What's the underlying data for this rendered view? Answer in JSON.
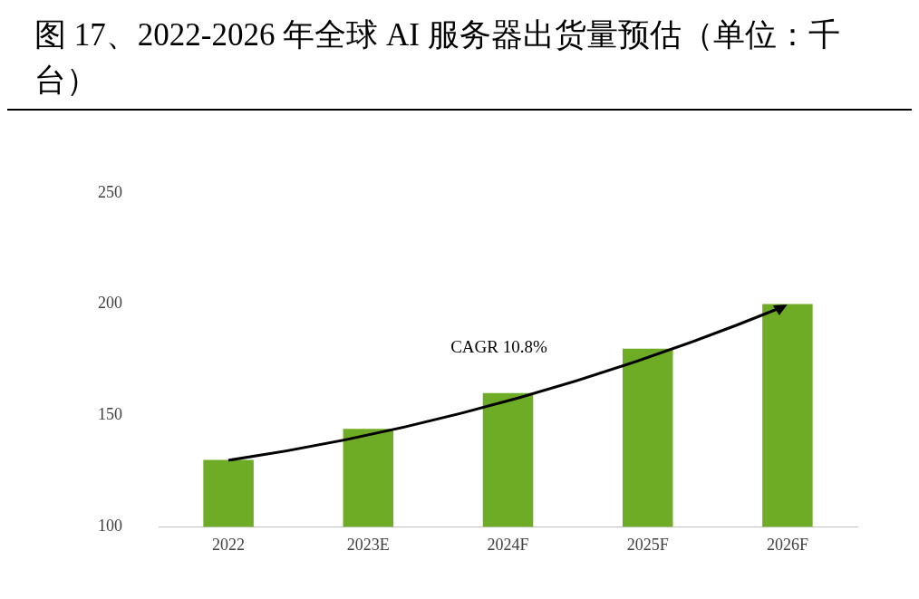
{
  "chart_data": {
    "type": "bar",
    "title": "图 17、2022-2026 年全球 AI 服务器出货量预估（单位：千台）",
    "categories": [
      "2022",
      "2023E",
      "2024F",
      "2025F",
      "2026F"
    ],
    "values": [
      130,
      144,
      160,
      180,
      200
    ],
    "color": "#6fac25",
    "ylim": [
      100,
      250
    ],
    "yticks": [
      100,
      150,
      200,
      250
    ],
    "grid": false,
    "legend": false,
    "annotations": [
      "CAGR 10.8%"
    ]
  }
}
